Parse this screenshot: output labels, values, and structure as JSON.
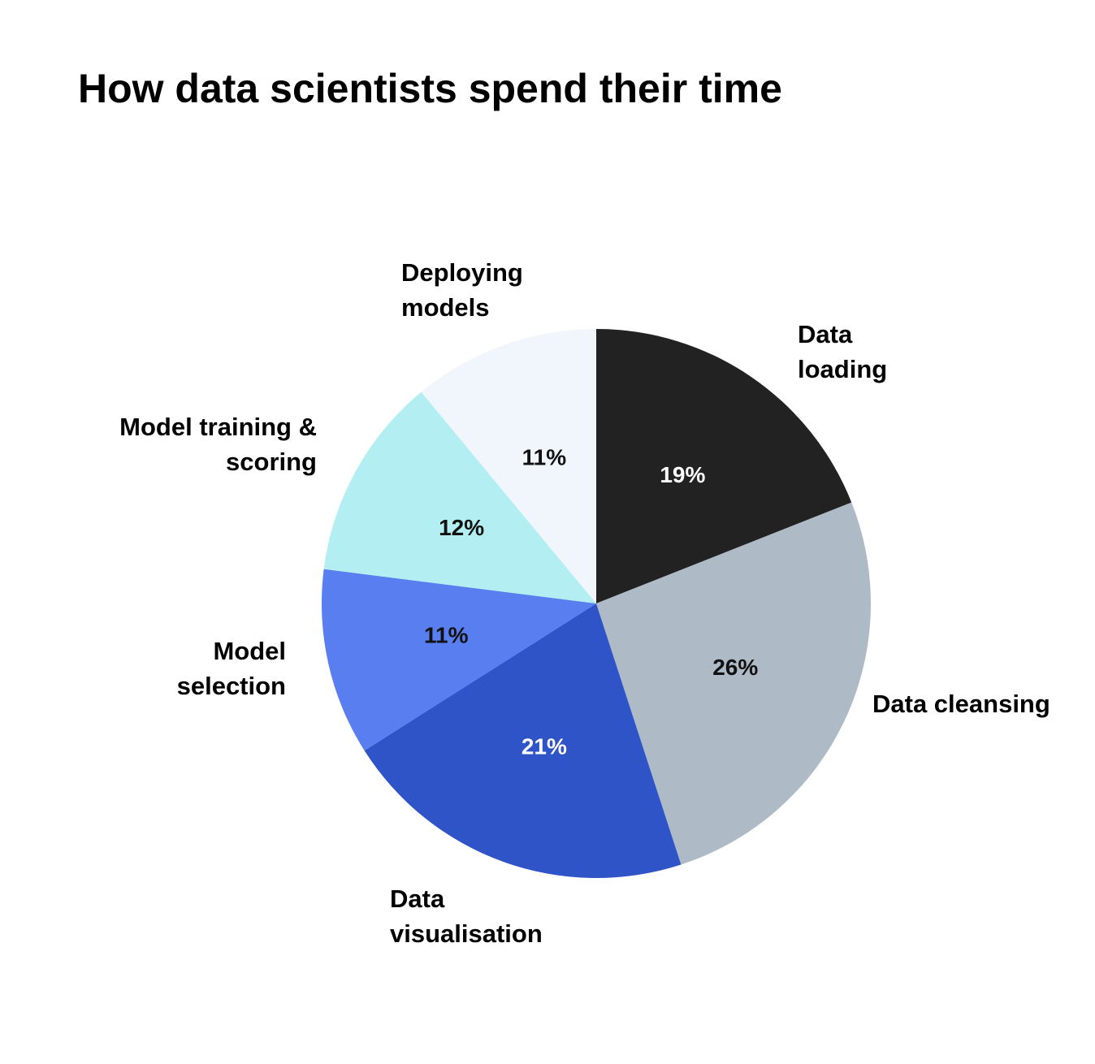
{
  "chart_data": {
    "type": "pie",
    "title": "How data scientists spend their time",
    "categories": [
      "Data loading",
      "Data cleansing",
      "Data visualisation",
      "Model selection",
      "Model training & scoring",
      "Deploying models"
    ],
    "values": [
      19,
      26,
      21,
      11,
      12,
      11
    ],
    "value_labels": [
      "19%",
      "26%",
      "21%",
      "11%",
      "12%",
      "11%"
    ],
    "colors": [
      "#222222",
      "#aebbc7",
      "#2f54c8",
      "#587ef0",
      "#b3eff2",
      "#f1f6fd"
    ]
  }
}
